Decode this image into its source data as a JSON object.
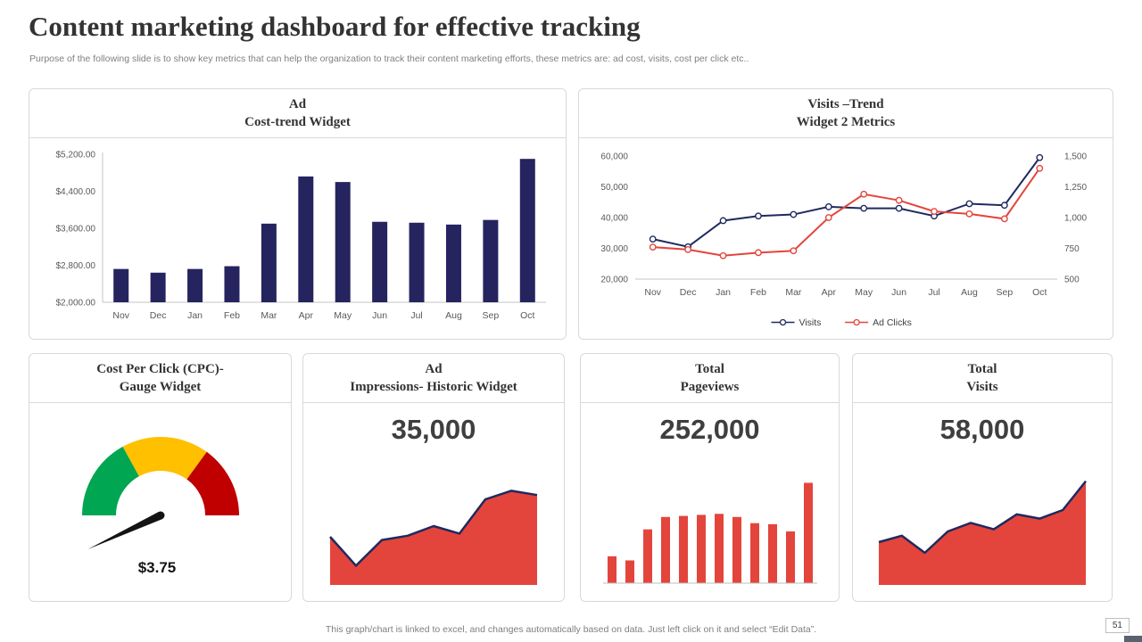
{
  "header": {
    "title": "Content marketing dashboard for effective tracking",
    "subtitle": "Purpose of the following slide is to show key metrics that can help the organization to track their content marketing efforts, these metrics are: ad cost, visits, cost per click etc.."
  },
  "panels": {
    "ad_cost": {
      "line1": "Ad",
      "line2": "Cost-trend Widget"
    },
    "visits_trend": {
      "line1": "Visits –Trend",
      "line2": "Widget 2 Metrics"
    },
    "cpc_gauge": {
      "line1": "Cost Per Click (CPC)-",
      "line2": "Gauge Widget"
    },
    "ad_impressions": {
      "line1": "Ad",
      "line2": "Impressions- Historic Widget",
      "value": "35,000"
    },
    "total_pageviews": {
      "line1": "Total",
      "line2": "Pageviews",
      "value": "252,000"
    },
    "total_visits": {
      "line1": "Total",
      "line2": "Visits",
      "value": "58,000"
    }
  },
  "footer": {
    "note": "This graph/chart is linked to excel,  and changes automatically based on data. Just left click on it and select “Edit Data”.",
    "page_number": "51"
  },
  "colors": {
    "bar_navy": "#26245F",
    "line_navy": "#1F2A5E",
    "accent_red": "#E3453C",
    "gauge_green": "#00A651",
    "gauge_amber": "#FFC000",
    "gauge_red": "#C00000"
  },
  "chart_data": [
    {
      "id": "ad-cost-trend",
      "type": "bar",
      "title": "Ad Cost-trend Widget",
      "categories": [
        "Nov",
        "Dec",
        "Jan",
        "Feb",
        "Mar",
        "Apr",
        "May",
        "Jun",
        "Jul",
        "Aug",
        "Sep",
        "Oct"
      ],
      "values": [
        2720,
        2640,
        2720,
        2780,
        3700,
        4720,
        4600,
        3740,
        3720,
        3680,
        3780,
        5100
      ],
      "ylim": [
        2000,
        5200
      ],
      "yticks": [
        "$2,000.00",
        "$2,800.00",
        "$3,600.00",
        "$4,400.00",
        "$5,200.00"
      ],
      "bar_color": "#26245F",
      "grid": false,
      "legend_position": "none"
    },
    {
      "id": "visits-trend",
      "type": "line",
      "title": "Visits –Trend Widget 2 Metrics",
      "categories": [
        "Nov",
        "Dec",
        "Jan",
        "Feb",
        "Mar",
        "Apr",
        "May",
        "Jun",
        "Jul",
        "Aug",
        "Sep",
        "Oct"
      ],
      "series": [
        {
          "name": "Visits",
          "axis": "left",
          "color": "#1F2A5E",
          "values": [
            33000,
            30500,
            39000,
            40500,
            41000,
            43500,
            43000,
            43000,
            40500,
            44500,
            44000,
            59500
          ]
        },
        {
          "name": "Ad Clicks",
          "axis": "right",
          "color": "#E3453C",
          "values": [
            760,
            740,
            690,
            715,
            730,
            1000,
            1190,
            1140,
            1050,
            1030,
            990,
            1400
          ]
        }
      ],
      "left_ylim": [
        20000,
        60000
      ],
      "left_yticks": [
        "20,000",
        "30,000",
        "40,000",
        "50,000",
        "60,000"
      ],
      "right_ylim": [
        500,
        1500
      ],
      "right_yticks": [
        "500",
        "750",
        "1,000",
        "1,250",
        "1,500"
      ],
      "legend": [
        "Visits",
        "Ad Clicks"
      ],
      "legend_position": "bottom",
      "grid": false
    },
    {
      "id": "cpc-gauge",
      "type": "gauge",
      "title": "Cost Per Click (CPC)- Gauge Widget",
      "value_label": "$3.75",
      "segments": [
        {
          "name": "low",
          "color": "#00A651",
          "fraction": 0.34
        },
        {
          "name": "mid",
          "color": "#FFC000",
          "fraction": 0.36
        },
        {
          "name": "high",
          "color": "#C00000",
          "fraction": 0.3
        }
      ],
      "needle_angle_deg": 205
    },
    {
      "id": "ad-impressions",
      "type": "area",
      "title": "Ad Impressions- Historic Widget",
      "kpi": "35,000",
      "values_relative": [
        0.45,
        0.18,
        0.42,
        0.46,
        0.55,
        0.48,
        0.8,
        0.88,
        0.84
      ],
      "fill": "#E3453C",
      "line": "#1F2A5E"
    },
    {
      "id": "total-pageviews",
      "type": "bar-simple",
      "title": "Total Pageviews",
      "kpi": "252,000",
      "values_relative": [
        0.26,
        0.22,
        0.52,
        0.64,
        0.65,
        0.66,
        0.67,
        0.64,
        0.58,
        0.57,
        0.5,
        0.97
      ],
      "fill": "#E3453C"
    },
    {
      "id": "total-visits",
      "type": "area",
      "title": "Total Visits",
      "kpi": "58,000",
      "values_relative": [
        0.4,
        0.46,
        0.3,
        0.5,
        0.58,
        0.52,
        0.66,
        0.62,
        0.7,
        0.97
      ],
      "fill": "#E3453C",
      "line": "#1F2A5E"
    }
  ]
}
